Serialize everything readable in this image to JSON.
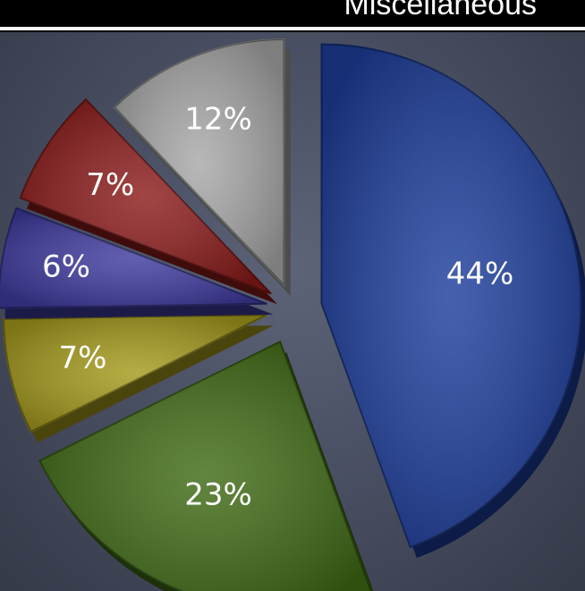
{
  "header": {
    "title": "Miscellaneous"
  },
  "chart_data": {
    "type": "pie",
    "title": "",
    "slices": [
      {
        "label": "44%",
        "value": 44,
        "color": "#1d3e9c"
      },
      {
        "label": "23%",
        "value": 23,
        "color": "#3f6a14"
      },
      {
        "label": "7%",
        "value": 7,
        "color": "#a59a1c"
      },
      {
        "label": "6%",
        "value": 6,
        "color": "#3f3ba0"
      },
      {
        "label": "7%",
        "value": 7,
        "color": "#8c1b1b"
      },
      {
        "label": "12%",
        "value": 12,
        "color": "#a8a8a8"
      }
    ]
  }
}
